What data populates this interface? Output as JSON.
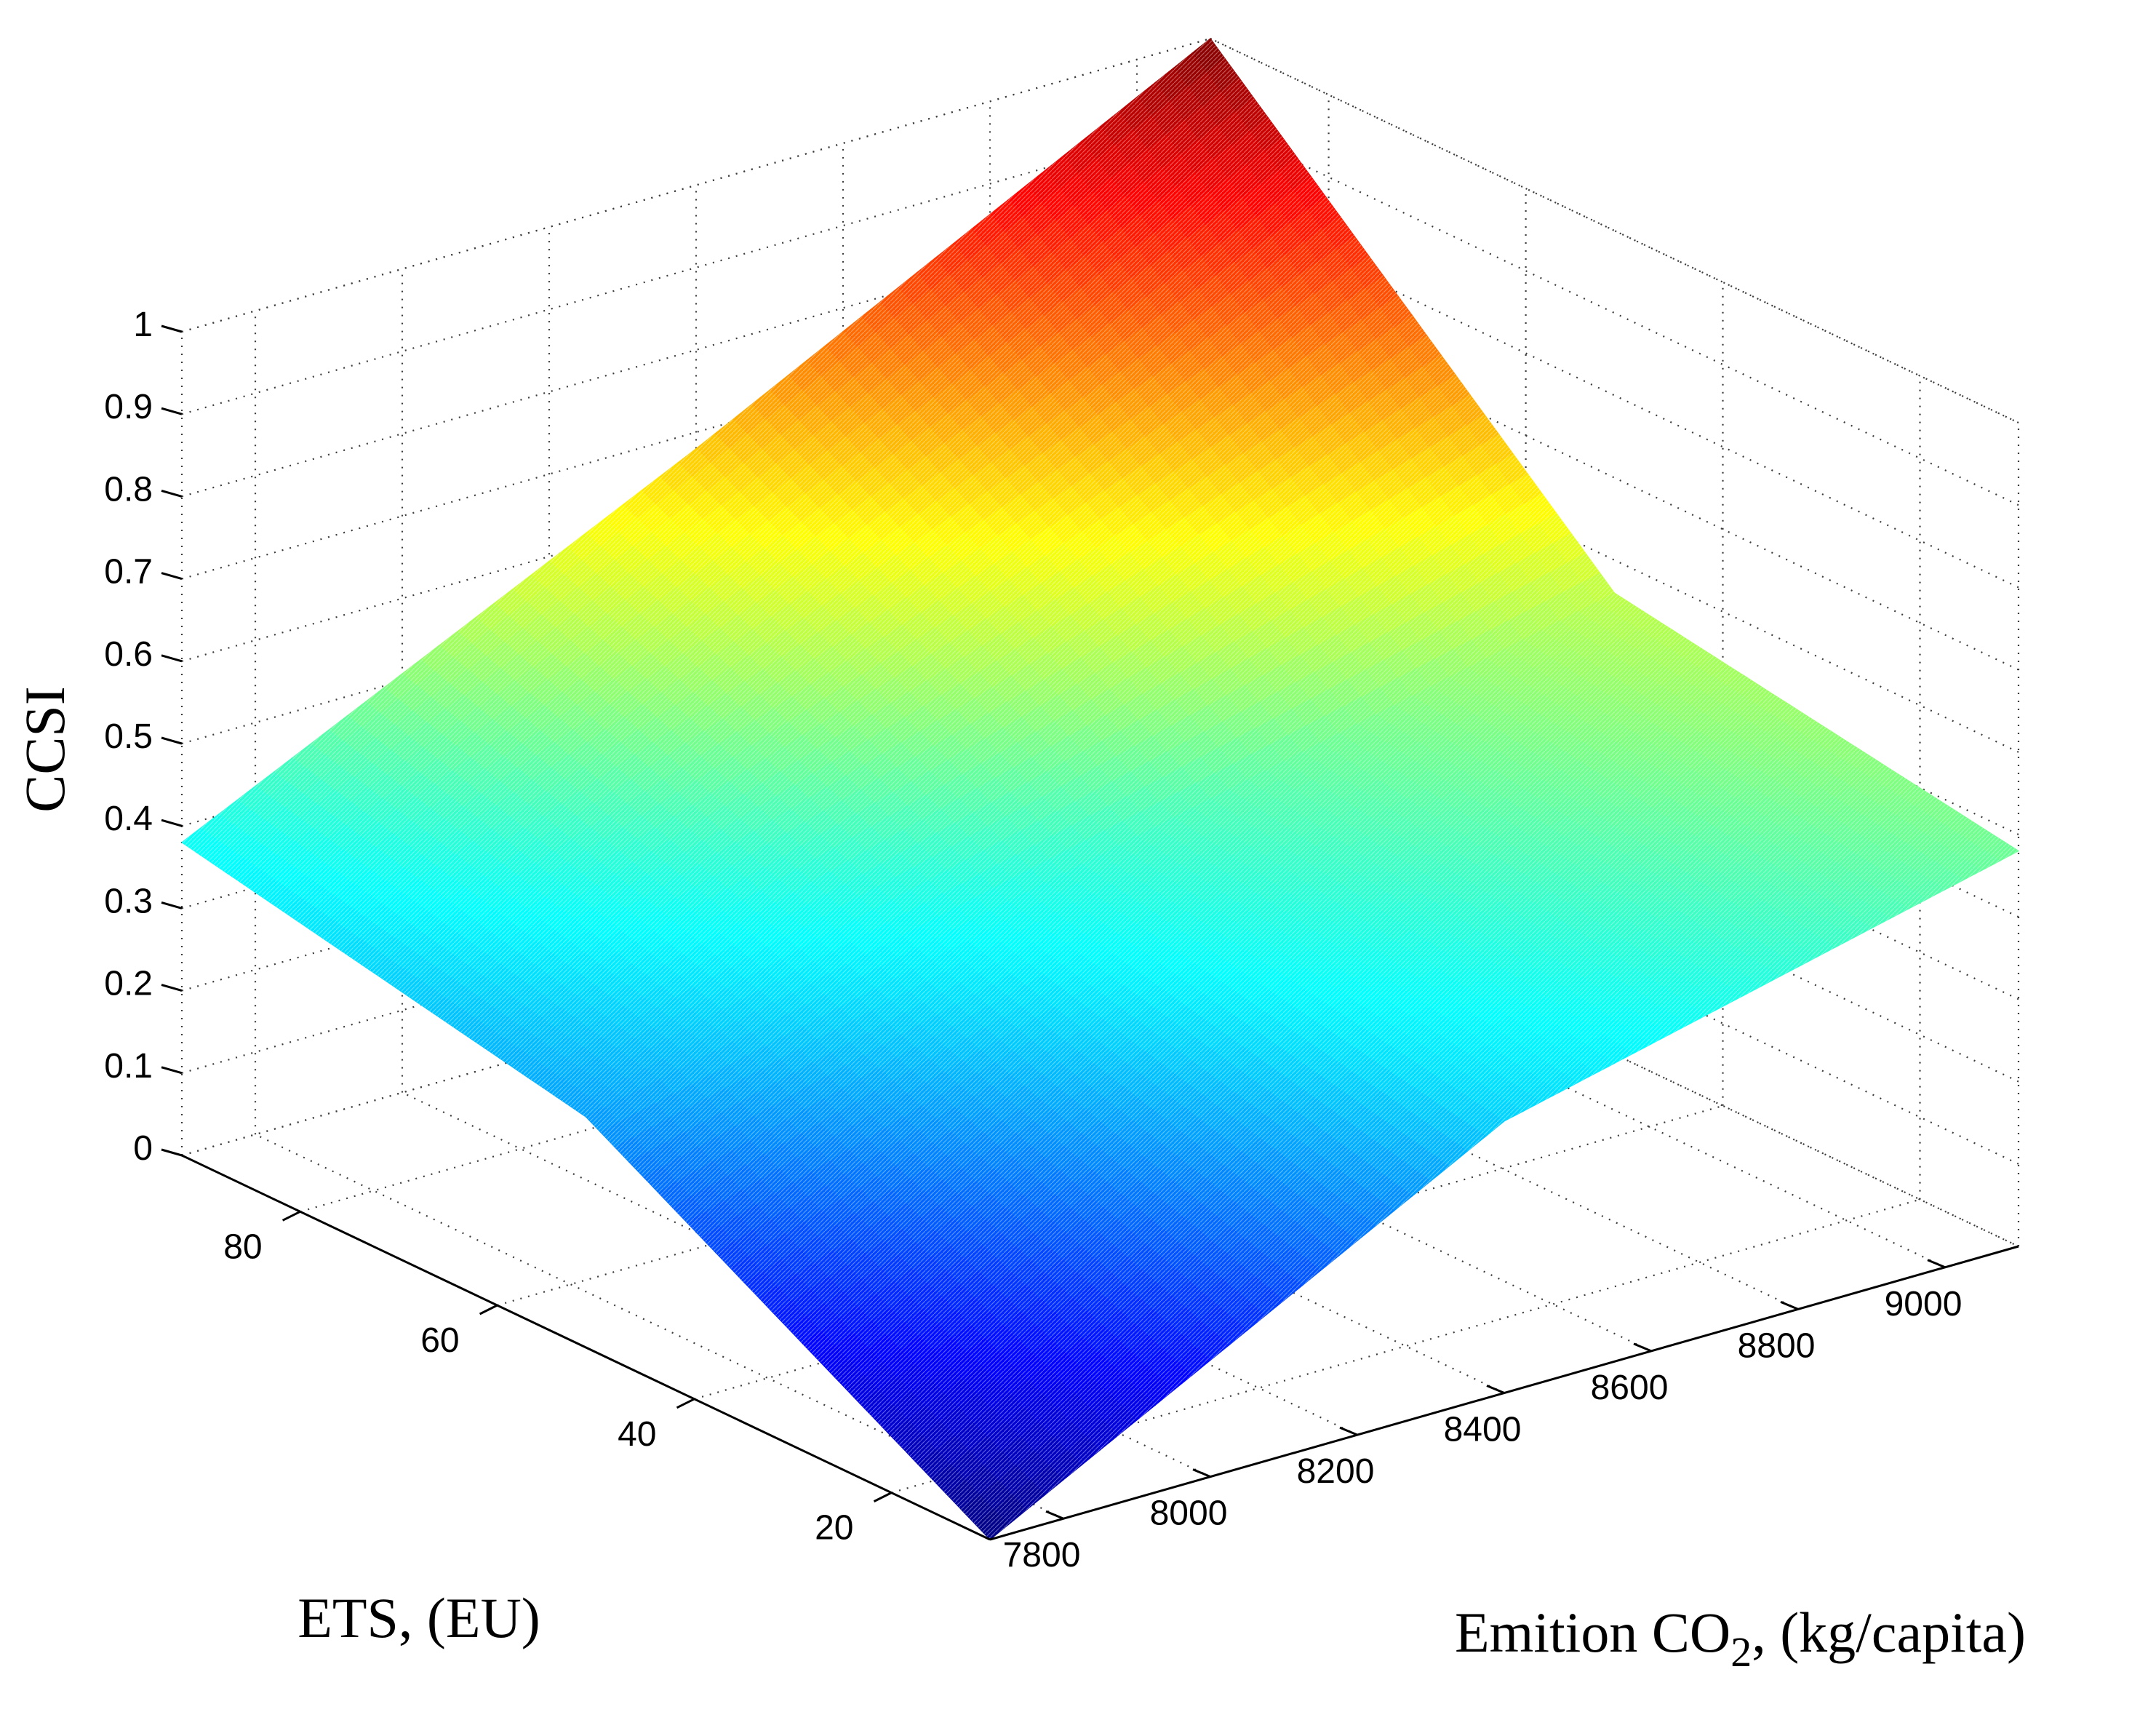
{
  "chart_data": {
    "type": "surface",
    "title": "",
    "xlabel": {
      "prefix": "Emition CO",
      "subscript": "2",
      "suffix": ", (kg/capita)"
    },
    "ylabel": "ETS, (EU)",
    "zlabel": "CCSI",
    "x_ticks": [
      "7800",
      "8000",
      "8200",
      "8400",
      "8600",
      "8800",
      "9000"
    ],
    "y_ticks": [
      "20",
      "40",
      "60",
      "80"
    ],
    "z_ticks": [
      "0",
      "0.1",
      "0.2",
      "0.3",
      "0.4",
      "0.5",
      "0.6",
      "0.7",
      "0.8",
      "0.9",
      "1"
    ],
    "xlim": [
      7700,
      9100
    ],
    "ylim": [
      10,
      92
    ],
    "zlim": [
      0,
      1
    ],
    "grid": true,
    "colormap": "jet",
    "x": [
      7700,
      8400,
      9100
    ],
    "y": [
      10,
      51,
      92
    ],
    "z": [
      [
        0.0,
        0.33,
        0.48
      ],
      [
        0.28,
        0.42,
        0.56
      ],
      [
        0.38,
        0.68,
        1.0
      ]
    ]
  }
}
